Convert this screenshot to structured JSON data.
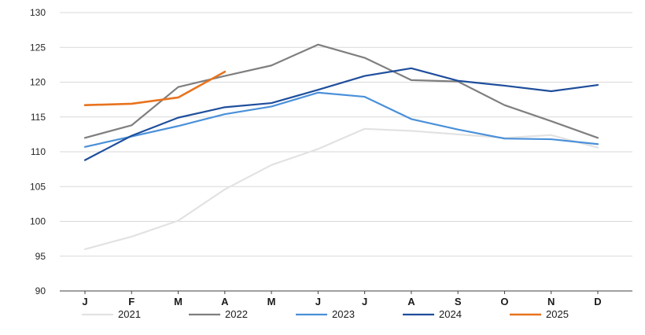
{
  "chart_data": {
    "type": "line",
    "title": "",
    "xlabel": "",
    "ylabel": "",
    "grid": "horizontal",
    "legend_position": "bottom",
    "categories": [
      "J",
      "F",
      "M",
      "A",
      "M",
      "J",
      "J",
      "A",
      "S",
      "O",
      "N",
      "D"
    ],
    "y_axis": {
      "min": 90,
      "max": 130,
      "step": 5,
      "ticks": [
        90,
        95,
        100,
        105,
        110,
        115,
        120,
        125,
        130
      ]
    },
    "series": [
      {
        "name": "2021",
        "color": "#e2e2e2",
        "values": [
          96.0,
          97.8,
          100.1,
          104.6,
          108.1,
          110.4,
          113.3,
          113.0,
          112.5,
          112.0,
          112.4,
          110.6
        ]
      },
      {
        "name": "2022",
        "color": "#7f7f7f",
        "values": [
          112.0,
          113.8,
          119.3,
          120.9,
          122.4,
          125.4,
          123.5,
          120.3,
          120.1,
          116.7,
          114.4,
          112.0
        ]
      },
      {
        "name": "2023",
        "color": "#4a90d9",
        "values": [
          110.7,
          112.2,
          113.7,
          115.4,
          116.5,
          118.5,
          117.9,
          114.7,
          113.2,
          111.9,
          111.8,
          111.1
        ]
      },
      {
        "name": "2024",
        "color": "#1f4e9c",
        "values": [
          108.8,
          112.3,
          114.9,
          116.4,
          117.0,
          118.9,
          120.9,
          122.0,
          120.2,
          119.5,
          118.7,
          119.6
        ]
      },
      {
        "name": "2025",
        "color": "#e8731e",
        "values": [
          116.7,
          116.9,
          117.8,
          121.5
        ]
      }
    ],
    "colors": {
      "gridline": "#d9d9d9",
      "axis": "#404040",
      "background": "#ffffff"
    }
  }
}
